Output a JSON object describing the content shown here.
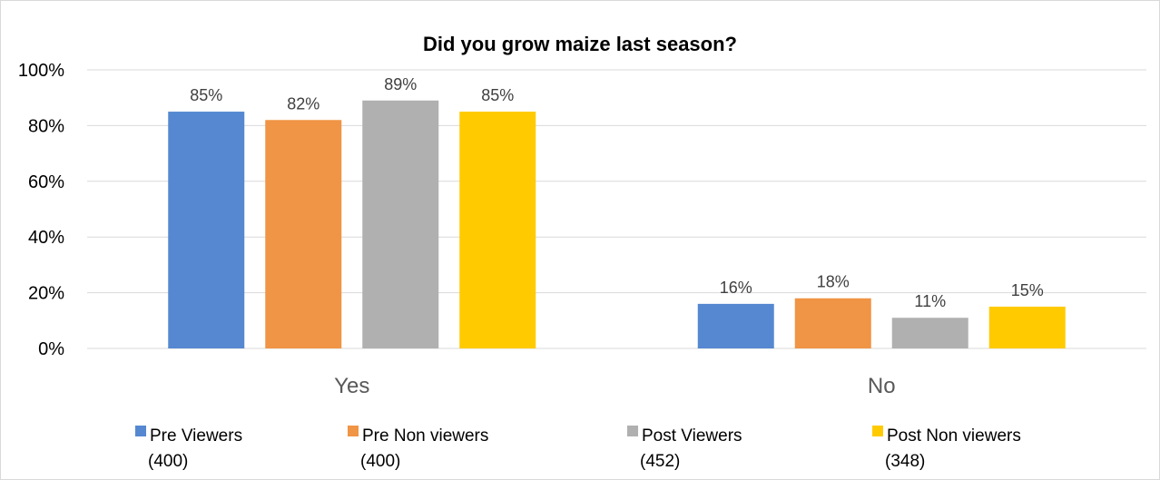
{
  "chart_data": {
    "type": "bar",
    "title": "Did you grow maize last season?",
    "categories": [
      "Yes",
      "No"
    ],
    "ylim": [
      0,
      100
    ],
    "yticks": [
      "0%",
      "20%",
      "40%",
      "60%",
      "80%",
      "100%"
    ],
    "ytick_values": [
      0,
      20,
      40,
      60,
      80,
      100
    ],
    "grid": true,
    "legend_position": "bottom",
    "series": [
      {
        "name": "Pre Viewers (400)",
        "legend_lines": [
          "Pre Viewers",
          "(400)"
        ],
        "color": "#5588d0",
        "values": [
          85,
          16
        ],
        "labels": [
          "85%",
          "16%"
        ]
      },
      {
        "name": "Pre Non viewers (400)",
        "legend_lines": [
          "Pre Non viewers",
          "(400)"
        ],
        "color": "#f09445",
        "values": [
          82,
          18
        ],
        "labels": [
          "82%",
          "18%"
        ]
      },
      {
        "name": "Post Viewers (452)",
        "legend_lines": [
          "Post Viewers",
          "(452)"
        ],
        "color": "#b0b0b0",
        "values": [
          89,
          11
        ],
        "labels": [
          "89%",
          "11%"
        ]
      },
      {
        "name": "Post Non viewers (348)",
        "legend_lines": [
          "Post Non viewers",
          "(348)"
        ],
        "color": "#ffca00",
        "values": [
          85,
          15
        ],
        "labels": [
          "85%",
          "15%"
        ]
      }
    ]
  }
}
